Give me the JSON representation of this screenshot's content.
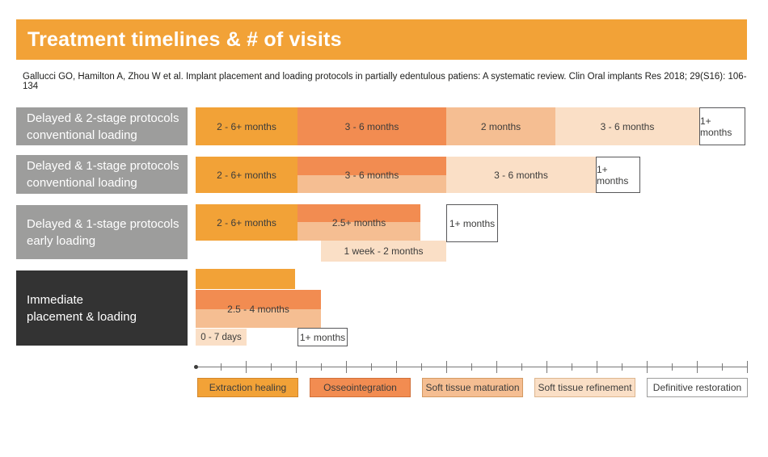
{
  "header": {
    "title": "Treatment timelines & # of visits"
  },
  "citation": "Gallucci GO, Hamilton A, Zhou W et al. Implant placement and loading protocols in partially edentulous patiens: A systematic review. Clin Oral implants Res 2018; 29(S16): 106-134",
  "colors": {
    "amber": "#F2A237",
    "orange": "#F28C51",
    "peach": "#F5BE92",
    "peachlight": "#FADFC6",
    "graylabel": "#9D9D9C",
    "darklabel": "#333333",
    "ink": "#3C3C3B",
    "boxborder": "#58585A",
    "axisgray": "#787878",
    "bdamber": "#D2862C",
    "bdorange": "#D0703A",
    "bdpeach": "#D49A63",
    "bdpeachlight": "#DDB68F",
    "bdwhite": "#9D9D9C"
  },
  "chart_data": {
    "type": "timeline",
    "title": "Treatment timelines & # of visits",
    "x_axis": {
      "n_ticks": 22,
      "tick_labels_shown": false,
      "unit": "time (unlabeled ticks)"
    },
    "legend_position": "bottom",
    "phases": [
      "Extraction healing",
      "Osseointegration",
      "Soft tissue maturation",
      "Soft tissue refinement",
      "Definitive restoration"
    ],
    "rows": [
      {
        "label_line1": "Delayed & 2-stage protocols",
        "label_line2": "conventional loading",
        "segments": [
          {
            "phase": "Extraction healing",
            "duration": "2 - 6+ months"
          },
          {
            "phase": "Osseointegration",
            "duration": "3 - 6 months"
          },
          {
            "phase": "Soft tissue maturation",
            "duration": "2 months"
          },
          {
            "phase": "Soft tissue refinement",
            "duration": "3 - 6 months"
          },
          {
            "phase": "Definitive restoration",
            "duration": "1+ months"
          }
        ]
      },
      {
        "label_line1": "Delayed & 1-stage protocols",
        "label_line2": "conventional loading",
        "segments": [
          {
            "phase": "Extraction healing",
            "duration": "2 - 6+ months"
          },
          {
            "phase": "Osseointegration / Soft tissue maturation",
            "duration": "3 - 6 months"
          },
          {
            "phase": "Soft tissue refinement",
            "duration": "3 - 6 months"
          },
          {
            "phase": "Definitive restoration",
            "duration": "1+ months"
          }
        ]
      },
      {
        "label_line1": "Delayed & 1-stage protocols",
        "label_line2": "early loading",
        "segments": [
          {
            "phase": "Extraction healing",
            "duration": "2 - 6+ months"
          },
          {
            "phase": "Osseointegration / Soft tissue maturation",
            "duration": "2.5+ months"
          },
          {
            "phase": "Soft tissue refinement",
            "duration": "1 week - 2 months"
          },
          {
            "phase": "Definitive restoration",
            "duration": "1+ months"
          }
        ]
      },
      {
        "label_line1": "Immediate",
        "label_line2": "placement & loading",
        "segments": [
          {
            "phase": "Extraction healing",
            "duration": ""
          },
          {
            "phase": "Osseointegration / Soft tissue maturation",
            "duration": "2.5 - 4 months"
          },
          {
            "phase": "Soft tissue refinement",
            "duration": "0 - 7 days"
          },
          {
            "phase": "Definitive restoration",
            "duration": "1+ months"
          }
        ]
      }
    ]
  }
}
